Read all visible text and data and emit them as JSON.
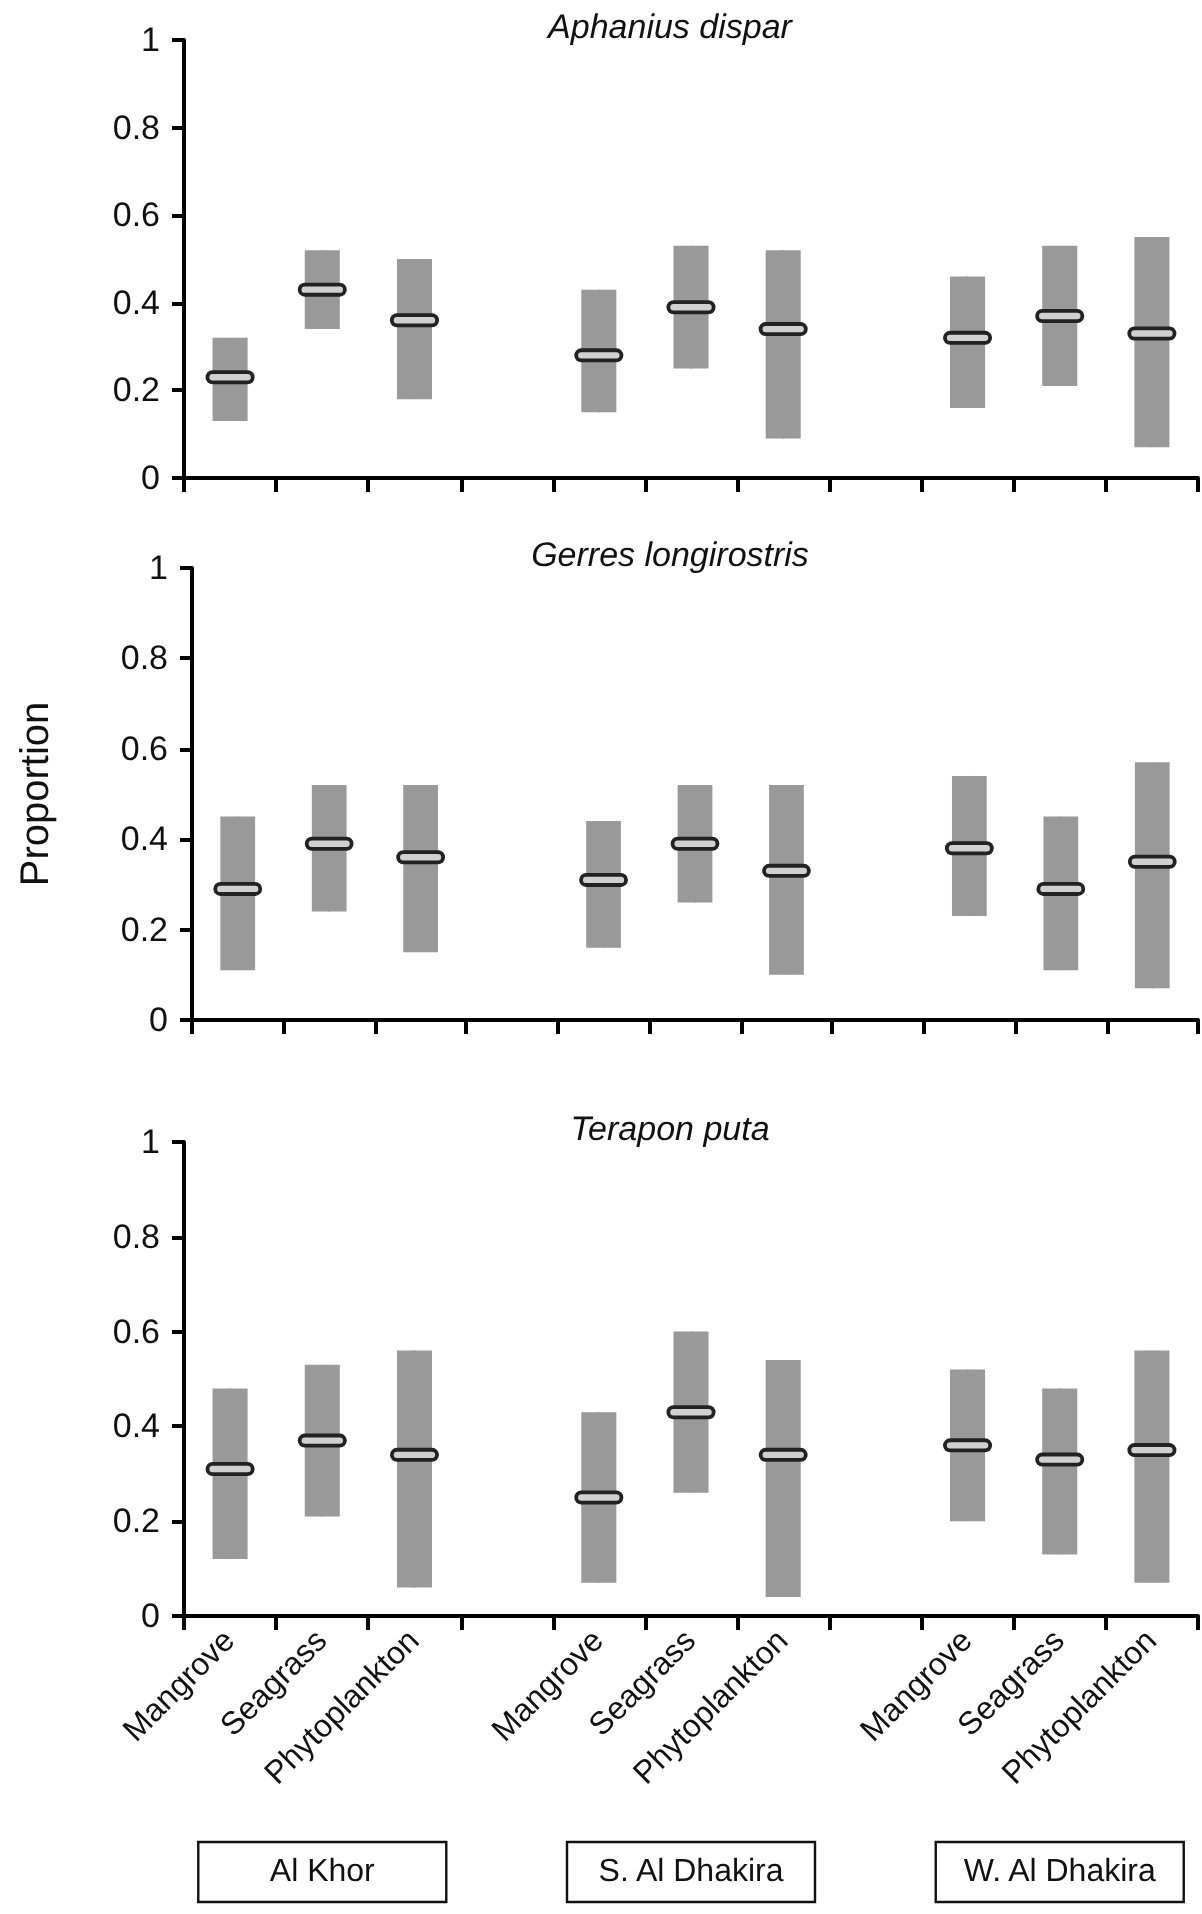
{
  "chart_data": [
    {
      "type": "box",
      "title": "Aphanius dispar",
      "categories": [
        null,
        null,
        null,
        null,
        null,
        null,
        null,
        null,
        null,
        null,
        null
      ],
      "ylim": [
        0,
        1
      ],
      "yticks": [
        0,
        0.2,
        0.4,
        0.6,
        0.8,
        1
      ],
      "tick_labels": "y",
      "series": [
        {
          "color": "#999999",
          "boxes": [
            {
              "low": 0.13,
              "q1": 0.13,
              "median": 0.23,
              "q3": 0.32,
              "high": 0.32
            },
            {
              "low": 0.34,
              "q1": 0.34,
              "median": 0.43,
              "q3": 0.52,
              "high": 0.52
            },
            {
              "low": 0.18,
              "q1": 0.18,
              "median": 0.36,
              "q3": 0.5,
              "high": 0.5
            },
            null,
            {
              "low": 0.15,
              "q1": 0.15,
              "median": 0.28,
              "q3": 0.43,
              "high": 0.43
            },
            {
              "low": 0.25,
              "q1": 0.25,
              "median": 0.39,
              "q3": 0.53,
              "high": 0.53
            },
            {
              "low": 0.09,
              "q1": 0.09,
              "median": 0.34,
              "q3": 0.52,
              "high": 0.52
            },
            null,
            {
              "low": 0.16,
              "q1": 0.16,
              "median": 0.32,
              "q3": 0.46,
              "high": 0.46
            },
            {
              "low": 0.21,
              "q1": 0.21,
              "median": 0.37,
              "q3": 0.53,
              "high": 0.53
            },
            {
              "low": 0.07,
              "q1": 0.07,
              "median": 0.33,
              "q3": 0.55,
              "high": 0.55
            }
          ]
        }
      ]
    },
    {
      "type": "box",
      "title": "Gerres longirostris",
      "ylabel": "Proportion",
      "categories": [
        null,
        null,
        null,
        null,
        null,
        null,
        null,
        null,
        null,
        null,
        null
      ],
      "ylim": [
        0,
        1
      ],
      "yticks": [
        0,
        0.2,
        0.4,
        0.6,
        0.8,
        1
      ],
      "tick_labels": "y",
      "series": [
        {
          "color": "#999999",
          "boxes": [
            {
              "low": 0.11,
              "q1": 0.11,
              "median": 0.29,
              "q3": 0.45,
              "high": 0.45
            },
            {
              "low": 0.24,
              "q1": 0.24,
              "median": 0.39,
              "q3": 0.52,
              "high": 0.52
            },
            {
              "low": 0.15,
              "q1": 0.15,
              "median": 0.36,
              "q3": 0.52,
              "high": 0.52
            },
            null,
            {
              "low": 0.16,
              "q1": 0.16,
              "median": 0.31,
              "q3": 0.44,
              "high": 0.44
            },
            {
              "low": 0.26,
              "q1": 0.26,
              "median": 0.39,
              "q3": 0.52,
              "high": 0.52
            },
            {
              "low": 0.1,
              "q1": 0.1,
              "median": 0.33,
              "q3": 0.52,
              "high": 0.52
            },
            null,
            {
              "low": 0.23,
              "q1": 0.23,
              "median": 0.38,
              "q3": 0.54,
              "high": 0.54
            },
            {
              "low": 0.11,
              "q1": 0.11,
              "median": 0.29,
              "q3": 0.45,
              "high": 0.45
            },
            {
              "low": 0.07,
              "q1": 0.07,
              "median": 0.35,
              "q3": 0.57,
              "high": 0.57
            }
          ]
        }
      ]
    },
    {
      "type": "box",
      "title": "Terapon puta",
      "categories": [
        "Mangrove",
        "Seagrass",
        "Phytoplankton",
        null,
        "Mangrove",
        "Seagrass",
        "Phytoplankton",
        null,
        "Mangrove",
        "Seagrass",
        "Phytoplankton"
      ],
      "ylim": [
        0,
        1
      ],
      "yticks": [
        0,
        0.2,
        0.4,
        0.6,
        0.8,
        1
      ],
      "annotations": [
        "Al Khor",
        "S. Al Dhakira",
        "W. Al Dhakira"
      ],
      "series": [
        {
          "color": "#999999",
          "boxes": [
            {
              "low": 0.12,
              "q1": 0.12,
              "median": 0.31,
              "q3": 0.48,
              "high": 0.48
            },
            {
              "low": 0.21,
              "q1": 0.21,
              "median": 0.37,
              "q3": 0.53,
              "high": 0.53
            },
            {
              "low": 0.06,
              "q1": 0.06,
              "median": 0.34,
              "q3": 0.56,
              "high": 0.56
            },
            null,
            {
              "low": 0.07,
              "q1": 0.07,
              "median": 0.25,
              "q3": 0.43,
              "high": 0.43
            },
            {
              "low": 0.26,
              "q1": 0.26,
              "median": 0.43,
              "q3": 0.6,
              "high": 0.6
            },
            {
              "low": 0.04,
              "q1": 0.04,
              "median": 0.34,
              "q3": 0.54,
              "high": 0.54
            },
            null,
            {
              "low": 0.2,
              "q1": 0.2,
              "median": 0.36,
              "q3": 0.52,
              "high": 0.52
            },
            {
              "low": 0.13,
              "q1": 0.13,
              "median": 0.33,
              "q3": 0.48,
              "high": 0.48
            },
            {
              "low": 0.07,
              "q1": 0.07,
              "median": 0.35,
              "q3": 0.56,
              "high": 0.56
            }
          ]
        }
      ]
    }
  ]
}
